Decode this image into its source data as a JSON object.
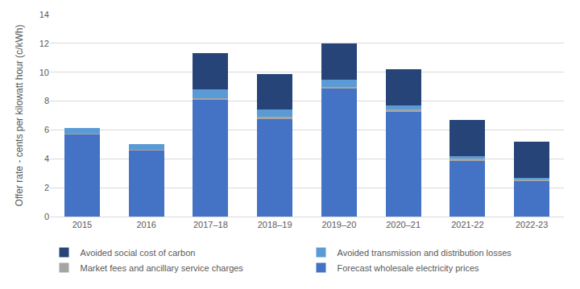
{
  "chart_data": {
    "type": "bar",
    "stacked": true,
    "y_label": "Offer rate - cents per kilowatt hour (c/kWh)",
    "categories": [
      "2015",
      "2016",
      "2017–18",
      "2018–19",
      "2019–20",
      "2020–21",
      "2021-22",
      "2022-23"
    ],
    "series": [
      {
        "name": "Forecast wholesale electricity prices",
        "color": "#4472c4",
        "values": [
          5.7,
          4.6,
          8.1,
          6.8,
          8.9,
          7.3,
          3.9,
          2.5
        ]
      },
      {
        "name": "Market fees and ancillary service charges",
        "color": "#a5a5a5",
        "values": [
          0.05,
          0.05,
          0.1,
          0.1,
          0.1,
          0.1,
          0.1,
          0.1
        ]
      },
      {
        "name": "Avoided transmission and distribution losses",
        "color": "#5b9bd5",
        "values": [
          0.4,
          0.35,
          0.6,
          0.5,
          0.5,
          0.3,
          0.2,
          0.1
        ]
      },
      {
        "name": "Avoided social cost of carbon",
        "color": "#264478",
        "values": [
          0,
          0,
          2.5,
          2.5,
          2.5,
          2.5,
          2.5,
          2.5
        ]
      }
    ],
    "ylim": [
      0,
      14
    ],
    "yticks": [
      0,
      2,
      4,
      6,
      8,
      10,
      12,
      14
    ],
    "grid": true,
    "legend": "bottom"
  }
}
